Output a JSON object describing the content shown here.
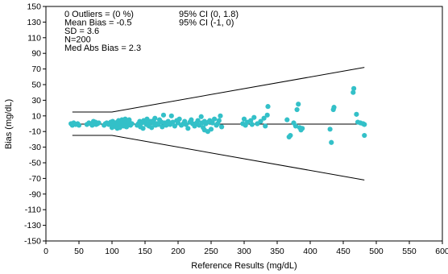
{
  "chart_data": {
    "type": "scatter",
    "title": "",
    "xlabel": "Reference Results (mg/dL)",
    "ylabel": "Bias (mg/dL)",
    "xlim": [
      0,
      600
    ],
    "ylim": [
      -150,
      150
    ],
    "x_ticks": [
      0,
      50,
      100,
      150,
      200,
      250,
      300,
      350,
      400,
      450,
      500,
      550,
      600
    ],
    "y_ticks": [
      150,
      130,
      110,
      90,
      70,
      50,
      30,
      10,
      -10,
      -30,
      -50,
      -70,
      -90,
      -110,
      -130,
      -150
    ],
    "grid": false,
    "legend": "none",
    "colors": {
      "points": "#33c0c8",
      "lines": "#000000"
    },
    "annotations": {
      "left": [
        "0 Outliers = (0 %)",
        "Mean Bias = -0.5",
        "SD = 3.6",
        "N=200",
        "Med Abs Bias = 2.3"
      ],
      "right": [
        "95% CI (0, 1.8)",
        "95% CI (-1, 0)"
      ]
    },
    "reference_lines": {
      "mean_bias": {
        "x": [
          40,
          482
        ],
        "y": [
          -0.5,
          -0.5
        ]
      },
      "upper_limit": {
        "x": [
          40,
          100,
          482
        ],
        "y": [
          15,
          15,
          72
        ]
      },
      "lower_limit": {
        "x": [
          40,
          100,
          482
        ],
        "y": [
          -15,
          -15,
          -72
        ]
      }
    },
    "points": [
      [
        38,
        0
      ],
      [
        40,
        -2
      ],
      [
        42,
        1
      ],
      [
        45,
        -1
      ],
      [
        48,
        0
      ],
      [
        50,
        -2
      ],
      [
        62,
        -1
      ],
      [
        65,
        1
      ],
      [
        68,
        0
      ],
      [
        70,
        -2
      ],
      [
        72,
        3
      ],
      [
        75,
        2
      ],
      [
        76,
        -1
      ],
      [
        78,
        0
      ],
      [
        80,
        1
      ],
      [
        88,
        -2
      ],
      [
        90,
        0
      ],
      [
        92,
        1
      ],
      [
        95,
        -1
      ],
      [
        98,
        2
      ],
      [
        100,
        0
      ],
      [
        101,
        3
      ],
      [
        102,
        -2
      ],
      [
        104,
        1
      ],
      [
        106,
        -4
      ],
      [
        108,
        2
      ],
      [
        110,
        0
      ],
      [
        110,
        4
      ],
      [
        112,
        -3
      ],
      [
        114,
        1
      ],
      [
        115,
        5
      ],
      [
        116,
        3
      ],
      [
        117,
        -1
      ],
      [
        118,
        0
      ],
      [
        120,
        6
      ],
      [
        121,
        2
      ],
      [
        122,
        -4
      ],
      [
        124,
        -1
      ],
      [
        125,
        1
      ],
      [
        126,
        3
      ],
      [
        128,
        -2
      ],
      [
        130,
        0
      ],
      [
        100,
        -5
      ],
      [
        108,
        -6
      ],
      [
        118,
        -3
      ],
      [
        112,
        -5
      ],
      [
        126,
        5
      ],
      [
        138,
        -2
      ],
      [
        140,
        0
      ],
      [
        142,
        3
      ],
      [
        143,
        -4
      ],
      [
        145,
        1
      ],
      [
        147,
        -6
      ],
      [
        148,
        4
      ],
      [
        150,
        2
      ],
      [
        152,
        -1
      ],
      [
        153,
        6
      ],
      [
        155,
        0
      ],
      [
        156,
        -3
      ],
      [
        158,
        3
      ],
      [
        160,
        -5
      ],
      [
        162,
        1
      ],
      [
        163,
        4
      ],
      [
        165,
        7
      ],
      [
        166,
        -2
      ],
      [
        168,
        0
      ],
      [
        170,
        -1
      ],
      [
        172,
        5
      ],
      [
        175,
        2
      ],
      [
        176,
        -4
      ],
      [
        178,
        11
      ],
      [
        180,
        1
      ],
      [
        182,
        -2
      ],
      [
        185,
        3
      ],
      [
        186,
        0
      ],
      [
        188,
        -1
      ],
      [
        190,
        10
      ],
      [
        192,
        2
      ],
      [
        195,
        -3
      ],
      [
        198,
        4
      ],
      [
        200,
        1
      ],
      [
        202,
        6
      ],
      [
        205,
        -2
      ],
      [
        208,
        0
      ],
      [
        210,
        3
      ],
      [
        212,
        -1
      ],
      [
        215,
        -6
      ],
      [
        218,
        2
      ],
      [
        220,
        5
      ],
      [
        222,
        0
      ],
      [
        225,
        -3
      ],
      [
        228,
        1
      ],
      [
        230,
        4
      ],
      [
        232,
        -2
      ],
      [
        235,
        9
      ],
      [
        236,
        1
      ],
      [
        238,
        -5
      ],
      [
        240,
        -8
      ],
      [
        240,
        3
      ],
      [
        242,
        0
      ],
      [
        245,
        -10
      ],
      [
        246,
        2
      ],
      [
        248,
        4
      ],
      [
        250,
        -7
      ],
      [
        252,
        1
      ],
      [
        255,
        6
      ],
      [
        258,
        -2
      ],
      [
        260,
        0
      ],
      [
        262,
        4
      ],
      [
        264,
        10
      ],
      [
        266,
        -4
      ],
      [
        298,
        0
      ],
      [
        300,
        6
      ],
      [
        302,
        -2
      ],
      [
        305,
        2
      ],
      [
        310,
        4
      ],
      [
        312,
        -1
      ],
      [
        315,
        8
      ],
      [
        320,
        0
      ],
      [
        325,
        3
      ],
      [
        330,
        7
      ],
      [
        332,
        -3
      ],
      [
        335,
        11
      ],
      [
        336,
        22
      ],
      [
        365,
        5
      ],
      [
        368,
        -17
      ],
      [
        370,
        -15
      ],
      [
        375,
        1
      ],
      [
        378,
        -3
      ],
      [
        380,
        18
      ],
      [
        382,
        25
      ],
      [
        384,
        -5
      ],
      [
        386,
        -8
      ],
      [
        388,
        -6
      ],
      [
        430,
        -7
      ],
      [
        432,
        -24
      ],
      [
        435,
        18
      ],
      [
        436,
        21
      ],
      [
        465,
        40
      ],
      [
        466,
        45
      ],
      [
        470,
        12
      ],
      [
        472,
        2
      ],
      [
        476,
        1
      ],
      [
        480,
        0
      ],
      [
        482,
        -15
      ],
      [
        482,
        -1
      ]
    ]
  }
}
